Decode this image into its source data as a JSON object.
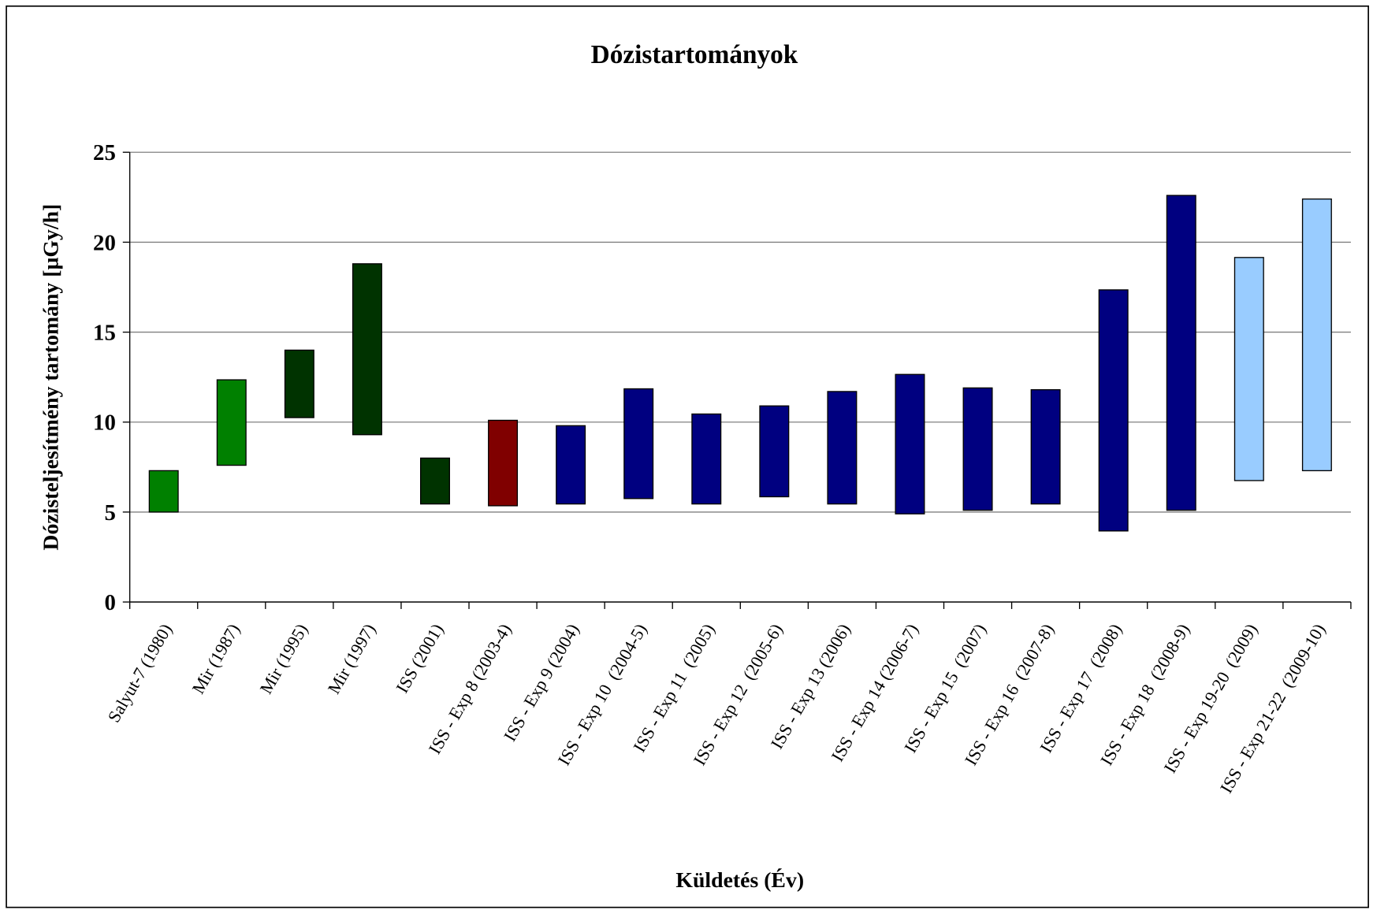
{
  "chart_data": {
    "type": "range-bar",
    "title": "Dózistartományok",
    "x_label": "Küldetés (Év)",
    "y_label": "Dózisteljesítmény tartomány [µGy/h]",
    "categories": [
      "Salyut-7 (1980)",
      "Mir (1987)",
      "Mir (1995)",
      "Mir (1997)",
      "ISS (2001)",
      "ISS - Exp 8 (2003-4)",
      "ISS - Exp 9 (2004)",
      "ISS - Exp 10  (2004-5)",
      "ISS - Exp 11  (2005)",
      "ISS - Exp 12  (2005-6)",
      "ISS - Exp 13 (2006)",
      "ISS - Exp 14 (2006-7)",
      "ISS - Exp 15  (2007)",
      "ISS - Exp 16  (2007-8)",
      "ISS - Exp 17  (2008)",
      "ISS - Exp 18  (2008-9)",
      "ISS - Exp 19-20  (2009)",
      "ISS - Exp 21-22  (2009-10)"
    ],
    "low": [
      5.0,
      7.6,
      10.25,
      9.3,
      5.45,
      5.35,
      5.45,
      5.75,
      5.45,
      5.85,
      5.45,
      4.9,
      5.1,
      5.45,
      3.95,
      5.1,
      6.75,
      7.3
    ],
    "high": [
      7.3,
      12.35,
      14.0,
      18.8,
      8.0,
      10.1,
      9.8,
      11.85,
      10.45,
      10.9,
      11.7,
      12.65,
      11.9,
      11.8,
      17.35,
      22.6,
      19.15,
      22.4
    ],
    "colors": [
      "#008000",
      "#008000",
      "#003300",
      "#003300",
      "#003300",
      "#800000",
      "#000080",
      "#000080",
      "#000080",
      "#000080",
      "#000080",
      "#000080",
      "#000080",
      "#000080",
      "#000080",
      "#000080",
      "#99ccff",
      "#99ccff"
    ],
    "ylim": [
      0,
      25
    ],
    "yticks": [
      0,
      5,
      10,
      15,
      20,
      25
    ],
    "grid": true
  }
}
